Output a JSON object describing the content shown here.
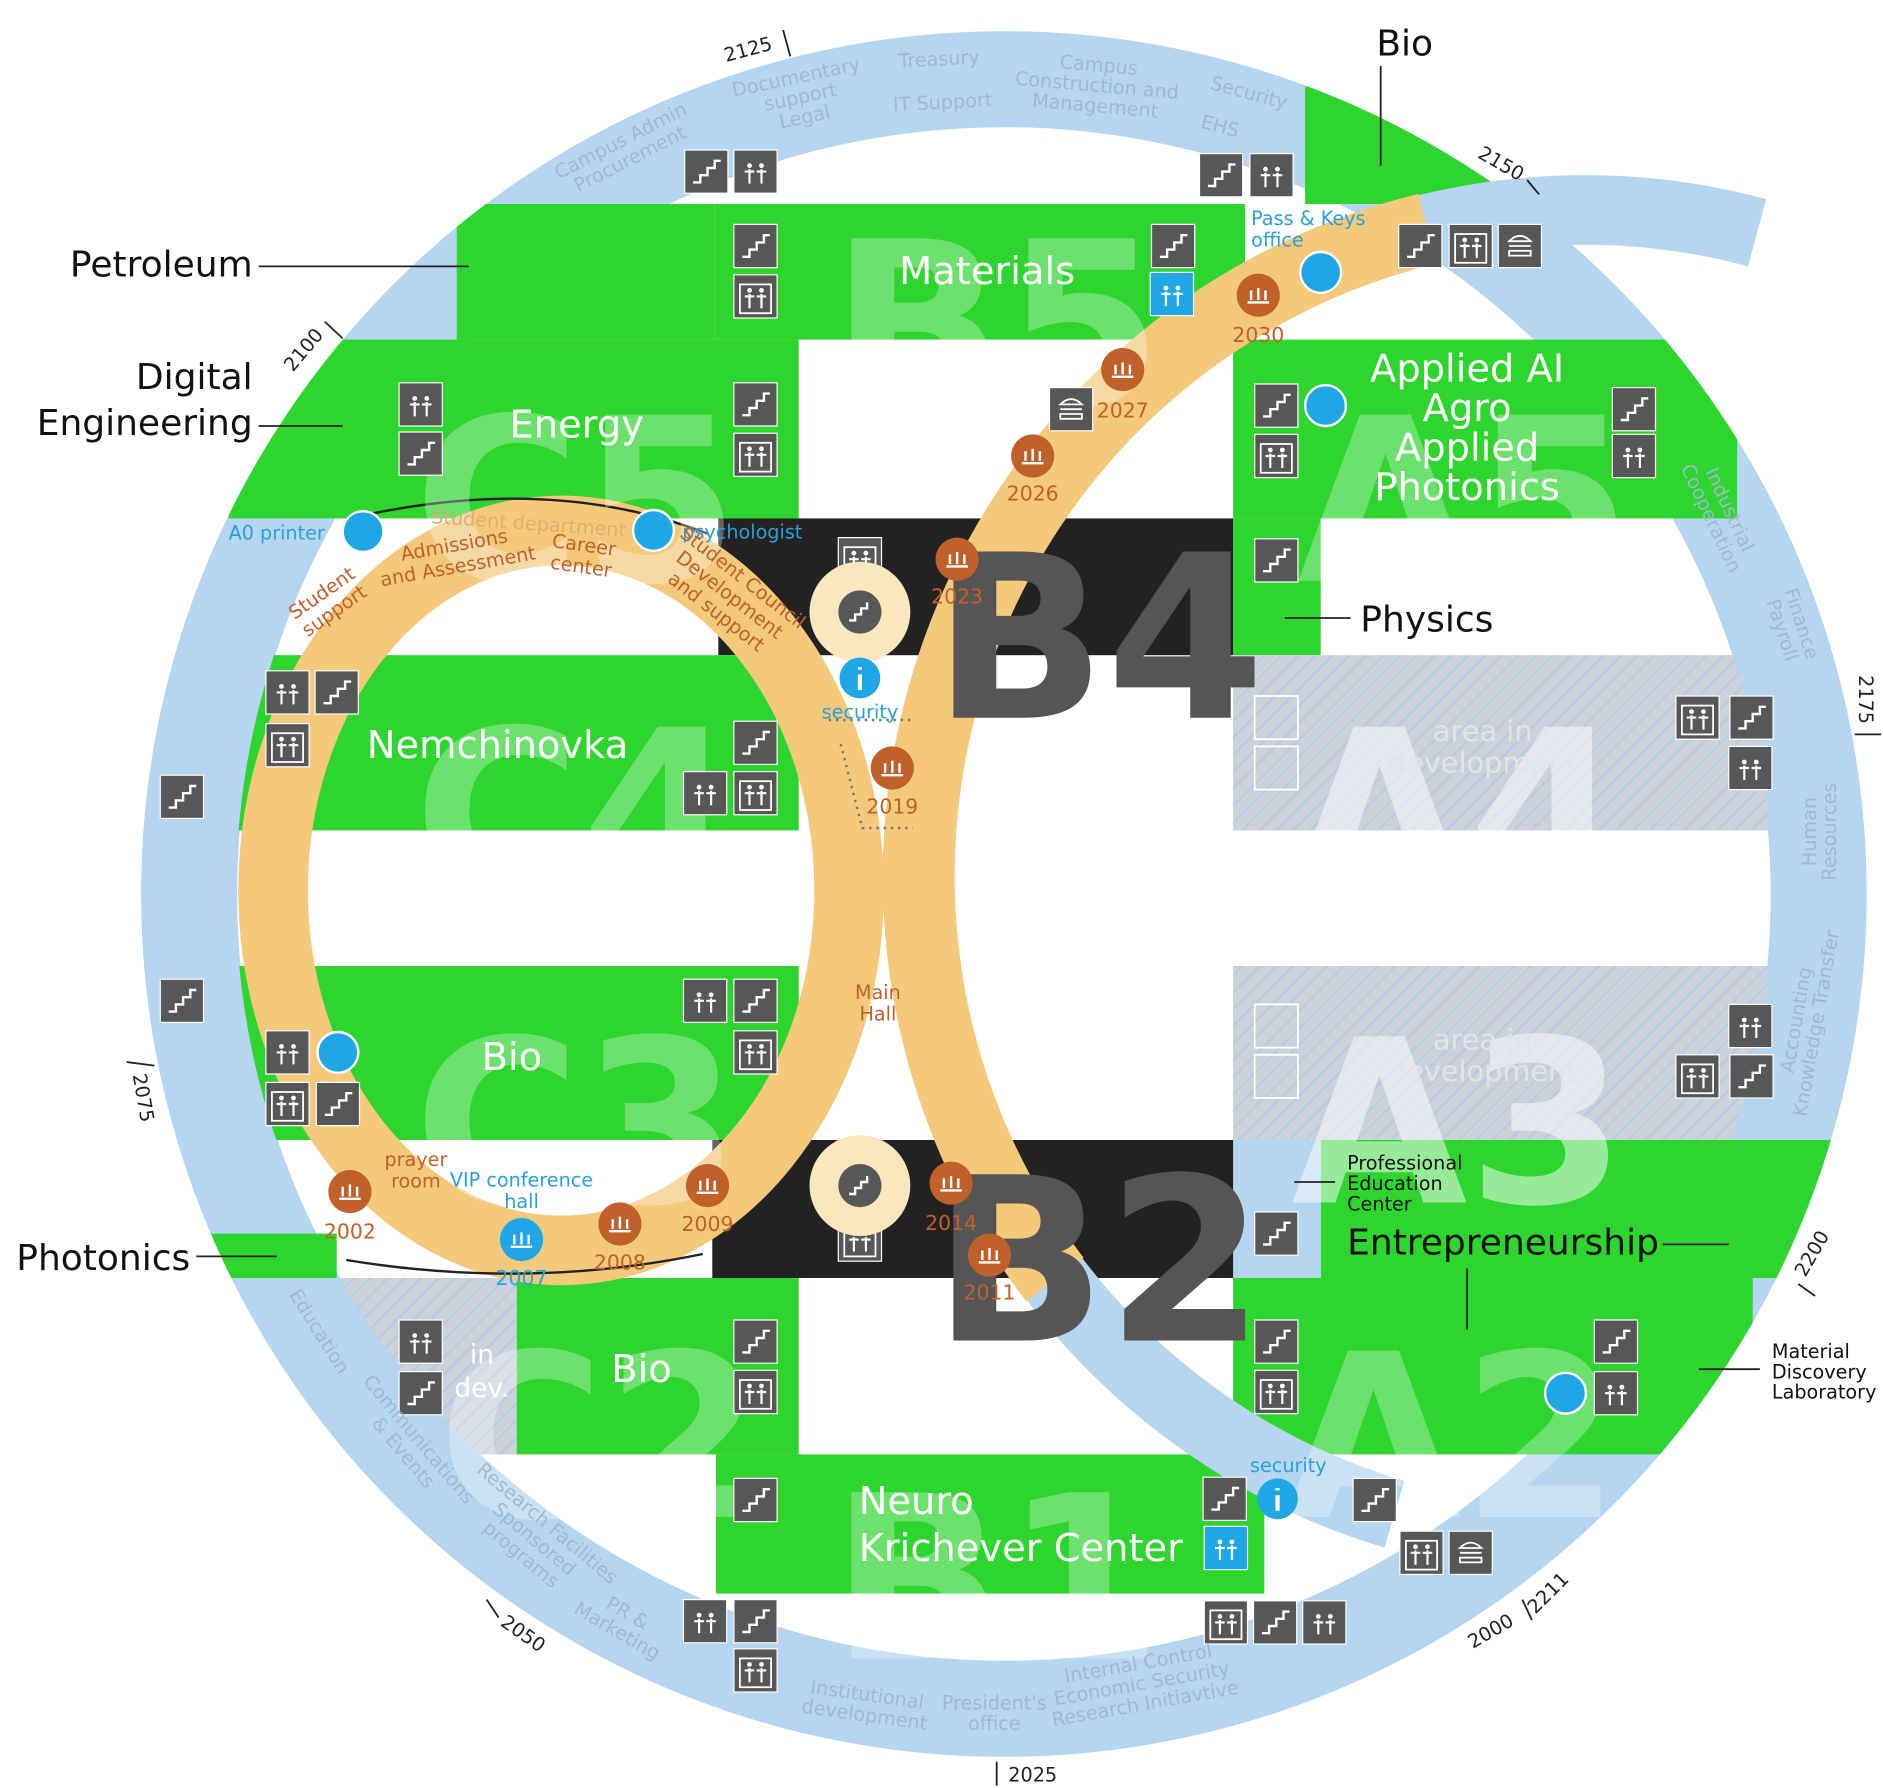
{
  "ring_numbers": [
    "2125",
    "2150",
    "2175",
    "2200",
    "2211",
    "2000",
    "2025",
    "2050",
    "2075",
    "2100"
  ],
  "departments": [
    [
      "Campus Admin",
      "Procurement"
    ],
    [
      "Documentary",
      "support",
      "Legal"
    ],
    [
      "Treasury"
    ],
    [
      "IT Support"
    ],
    [
      "Campus",
      "Construction and",
      "Management"
    ],
    [
      "Security"
    ],
    [
      "EHS"
    ],
    [
      "Industrial",
      "Cooperation"
    ],
    [
      "Finance",
      "Payroll"
    ],
    [
      "Human",
      "Resources"
    ],
    [
      "Accounting",
      "Knowledge Transfer"
    ],
    [
      "Internal Control",
      "Economic Security",
      "Research Initiavtive"
    ],
    [
      "President's",
      "office"
    ],
    [
      "Institutional",
      "development"
    ],
    [
      "PR &",
      "Marketing"
    ],
    [
      "Research Facilities",
      "Sponsored",
      "programs"
    ],
    [
      "Communications",
      "& Events"
    ],
    [
      "Education"
    ]
  ],
  "outside_labels": [
    [
      "Bio"
    ],
    [
      "Petroleum"
    ],
    [
      "Digital",
      "Engineering"
    ],
    [
      "Physics"
    ],
    [
      "Photonics"
    ],
    [
      "Professional",
      "Education",
      "Center"
    ],
    [
      "Entrepreneurship"
    ],
    [
      "Material",
      "Discovery",
      "Laboratory"
    ]
  ],
  "blocks": [
    {
      "code": "B5",
      "name": [
        "Materials"
      ]
    },
    {
      "code": "C5",
      "name": [
        "Energy"
      ]
    },
    {
      "code": "A5",
      "name": [
        "Applied AI",
        "Agro",
        "Applied",
        "Photonics"
      ]
    },
    {
      "code": "B4"
    },
    {
      "code": "C4",
      "name": [
        "Nemchinovka"
      ]
    },
    {
      "code": "A4",
      "name": [
        "area in",
        "development"
      ]
    },
    {
      "code": "C3",
      "name": [
        "Bio"
      ]
    },
    {
      "code": "A3",
      "name": [
        "area in",
        "development"
      ]
    },
    {
      "code": "B2"
    },
    {
      "code": "C2",
      "name": [
        "Bio"
      ],
      "note": [
        "in",
        "dev."
      ]
    },
    {
      "code": "A2"
    },
    {
      "code": "B1",
      "name": [
        "Neuro",
        "Krichever Center"
      ]
    }
  ],
  "services": [
    [
      "A0 printer"
    ],
    [
      "psychologist"
    ],
    [
      "Student",
      "support"
    ],
    [
      "Admissions",
      "and Assessment"
    ],
    [
      "Student department"
    ],
    [
      "Career",
      "center"
    ],
    [
      "Student Council",
      "Development",
      "and support"
    ],
    [
      "security"
    ],
    [
      "Main",
      "Hall"
    ],
    [
      "prayer",
      "room"
    ],
    [
      "VIP conference",
      "hall"
    ],
    [
      "Pass & Keys",
      "office"
    ],
    [
      "security"
    ]
  ],
  "auditoriums": [
    "2030",
    "2027",
    "2026",
    "2023",
    "2019",
    "2002",
    "2007",
    "2008",
    "2009",
    "2014",
    "2011"
  ]
}
